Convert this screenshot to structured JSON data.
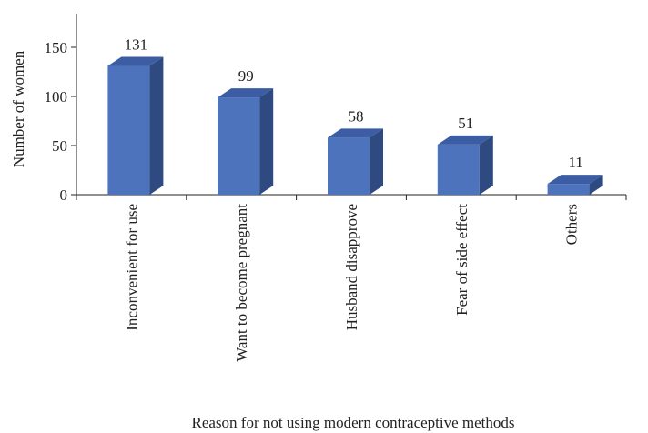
{
  "chart_data": {
    "type": "bar",
    "style": "3d-column",
    "categories": [
      "Inconvenient for use",
      "Want to become pregnant",
      "Husband disapprove",
      "Fear of side effect",
      "Others"
    ],
    "values": [
      131,
      99,
      58,
      51,
      11
    ],
    "data_labels": [
      "131",
      "99",
      "58",
      "51",
      "11"
    ],
    "xlabel": "Reason for not using modern contraceptive methods",
    "ylabel": "Number of women",
    "ylim": [
      0,
      150
    ],
    "yticks": [
      0,
      50,
      100,
      150
    ],
    "ytick_labels": [
      "0",
      "50",
      "100",
      "150"
    ],
    "grid": false,
    "legend": "none",
    "colors": {
      "bar_front": "#4e73bd",
      "bar_side": "#2e4a80",
      "bar_top": "#3c5da3",
      "axis": "#222222",
      "text": "#222222"
    }
  }
}
